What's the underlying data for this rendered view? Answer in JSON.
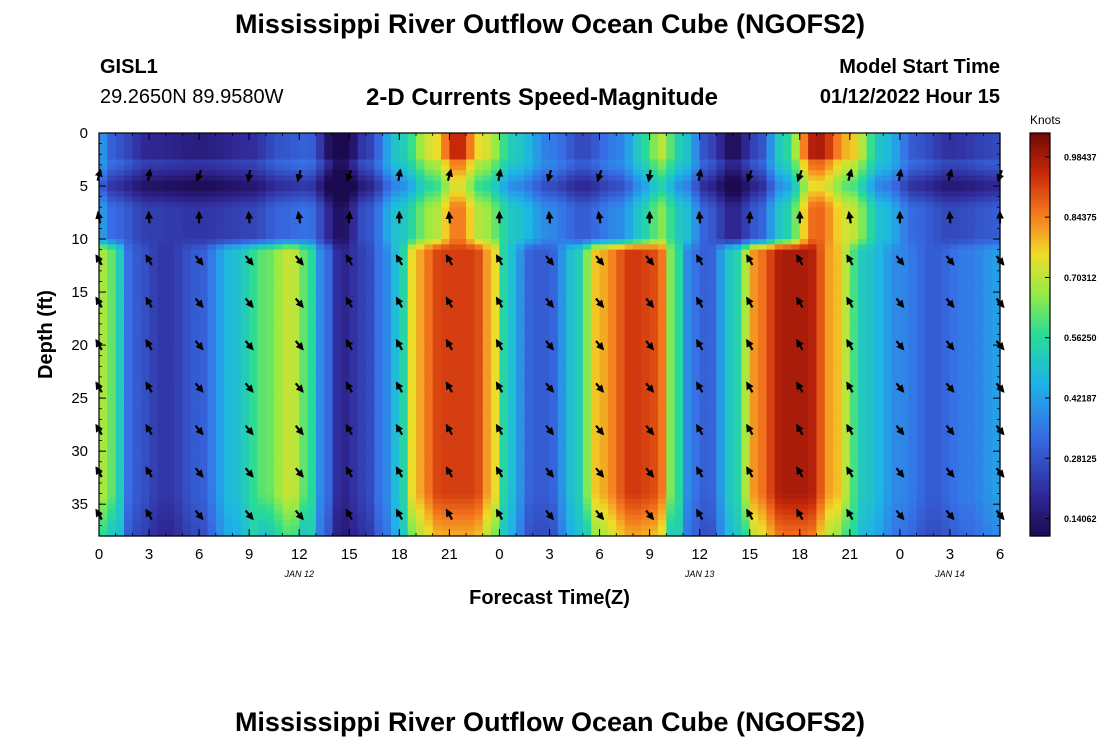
{
  "header": {
    "title": "Mississippi River Outflow Ocean Cube (NGOFS2)",
    "station_id": "GISL1",
    "station_coords": "29.2650N  89.9580W",
    "product": "2-D Currents Speed-Magnitude",
    "model_start_label": "Model Start Time",
    "model_start_value": "01/12/2022 Hour 15"
  },
  "footer": {
    "title": "Mississippi River Outflow Ocean Cube (NGOFS2)"
  },
  "chart_data": {
    "type": "heatmap",
    "title": "2-D Currents Speed-Magnitude",
    "xlabel": "Forecast Time(Z)",
    "ylabel": "Depth (ft)",
    "x_range_hours": [
      0,
      54
    ],
    "y_range_ft": [
      0,
      38
    ],
    "x_tick_labels": [
      "0",
      "3",
      "6",
      "9",
      "12",
      "15",
      "18",
      "21",
      "0",
      "3",
      "6",
      "9",
      "12",
      "15",
      "18",
      "21",
      "0",
      "3",
      "6"
    ],
    "y_tick_labels": [
      "0",
      "5",
      "10",
      "15",
      "20",
      "25",
      "30",
      "35"
    ],
    "date_labels": [
      {
        "label": "JAN 12",
        "hour": 12
      },
      {
        "label": "JAN 13",
        "hour": 36
      },
      {
        "label": "JAN 14",
        "hour": 51
      }
    ],
    "colorbar": {
      "units": "Knots",
      "range": [
        0.1,
        1.04
      ],
      "tick_values": [
        0.14062,
        0.28125,
        0.42187,
        0.5625,
        0.70312,
        0.84375,
        0.98437
      ],
      "tick_labels": [
        "0.14062",
        "0.28125",
        "0.42187",
        "0.56250",
        "0.70312",
        "0.84375",
        "0.98437"
      ]
    },
    "surface_layer": {
      "depth_ft": [
        0,
        10
      ],
      "speed_knots_by_hour": [
        [
          0,
          0.42
        ],
        [
          1,
          0.32
        ],
        [
          3,
          0.24
        ],
        [
          6,
          0.22
        ],
        [
          9,
          0.25
        ],
        [
          11,
          0.32
        ],
        [
          12.5,
          0.34
        ],
        [
          14.5,
          0.12
        ],
        [
          16,
          0.28
        ],
        [
          18,
          0.5
        ],
        [
          20,
          0.68
        ],
        [
          21.5,
          0.86
        ],
        [
          23,
          0.68
        ],
        [
          25,
          0.5
        ],
        [
          27,
          0.38
        ],
        [
          29,
          0.3
        ],
        [
          31,
          0.38
        ],
        [
          33,
          0.55
        ],
        [
          33.5,
          0.66
        ],
        [
          35,
          0.5
        ],
        [
          36.5,
          0.3
        ],
        [
          38,
          0.18
        ],
        [
          39.5,
          0.3
        ],
        [
          41,
          0.52
        ],
        [
          43,
          0.88
        ],
        [
          45,
          0.72
        ],
        [
          47,
          0.48
        ],
        [
          49,
          0.32
        ],
        [
          51,
          0.26
        ],
        [
          54,
          0.3
        ]
      ]
    },
    "lower_layer": {
      "depth_ft": [
        11,
        38
      ],
      "speed_knots_by_hour": [
        [
          0,
          0.7
        ],
        [
          0.8,
          0.62
        ],
        [
          2,
          0.3
        ],
        [
          4,
          0.22
        ],
        [
          6,
          0.3
        ],
        [
          8,
          0.48
        ],
        [
          10,
          0.62
        ],
        [
          11.5,
          0.72
        ],
        [
          12.5,
          0.6
        ],
        [
          13.5,
          0.35
        ],
        [
          14.5,
          0.18
        ],
        [
          16,
          0.25
        ],
        [
          17,
          0.36
        ],
        [
          18,
          0.5
        ],
        [
          19,
          0.8
        ],
        [
          20.5,
          0.92
        ],
        [
          22.5,
          0.92
        ],
        [
          23.5,
          0.8
        ],
        [
          24.5,
          0.5
        ],
        [
          26,
          0.3
        ],
        [
          27,
          0.3
        ],
        [
          28.5,
          0.5
        ],
        [
          30,
          0.8
        ],
        [
          32,
          0.93
        ],
        [
          33.5,
          0.9
        ],
        [
          34.5,
          0.6
        ],
        [
          35.5,
          0.35
        ],
        [
          36.5,
          0.3
        ],
        [
          38,
          0.52
        ],
        [
          39.5,
          0.85
        ],
        [
          41,
          0.98
        ],
        [
          42.5,
          0.98
        ],
        [
          44,
          0.8
        ],
        [
          46,
          0.5
        ],
        [
          48,
          0.38
        ],
        [
          50,
          0.3
        ],
        [
          52,
          0.36
        ],
        [
          54,
          0.42
        ]
      ]
    },
    "vector_depths_ft": [
      4,
      8,
      12,
      16,
      20,
      24,
      28,
      32,
      36
    ],
    "vector_hours": [
      0,
      3,
      6,
      9,
      12,
      15,
      18,
      21,
      24,
      27,
      30,
      33,
      36,
      39,
      42,
      45,
      48,
      51,
      54
    ],
    "vector_directions_deg": [
      [
        15,
        10,
        200,
        190,
        195,
        200,
        10,
        15,
        10,
        195,
        200,
        190,
        10,
        200,
        200,
        15,
        10,
        15,
        200
      ],
      [
        350,
        355,
        0,
        355,
        350,
        5,
        0,
        355,
        0,
        355,
        350,
        0,
        355,
        5,
        0,
        350,
        0,
        355,
        0
      ],
      [
        330,
        330,
        140,
        140,
        140,
        330,
        330,
        330,
        330,
        140,
        140,
        140,
        330,
        330,
        330,
        330,
        140,
        140,
        140
      ],
      [
        330,
        330,
        140,
        140,
        140,
        330,
        330,
        330,
        330,
        140,
        140,
        140,
        330,
        330,
        330,
        330,
        140,
        140,
        140
      ],
      [
        330,
        330,
        140,
        140,
        140,
        330,
        330,
        330,
        330,
        140,
        140,
        140,
        330,
        330,
        330,
        330,
        140,
        140,
        140
      ],
      [
        330,
        330,
        140,
        140,
        140,
        330,
        330,
        330,
        330,
        140,
        140,
        140,
        330,
        330,
        330,
        330,
        140,
        140,
        140
      ],
      [
        330,
        330,
        140,
        140,
        140,
        330,
        330,
        330,
        330,
        140,
        140,
        140,
        330,
        330,
        330,
        330,
        140,
        140,
        140
      ],
      [
        330,
        330,
        140,
        140,
        140,
        330,
        330,
        330,
        330,
        140,
        140,
        140,
        330,
        330,
        330,
        330,
        140,
        140,
        140
      ],
      [
        330,
        330,
        140,
        140,
        140,
        330,
        330,
        330,
        330,
        140,
        140,
        140,
        330,
        330,
        330,
        330,
        140,
        140,
        140
      ]
    ]
  }
}
